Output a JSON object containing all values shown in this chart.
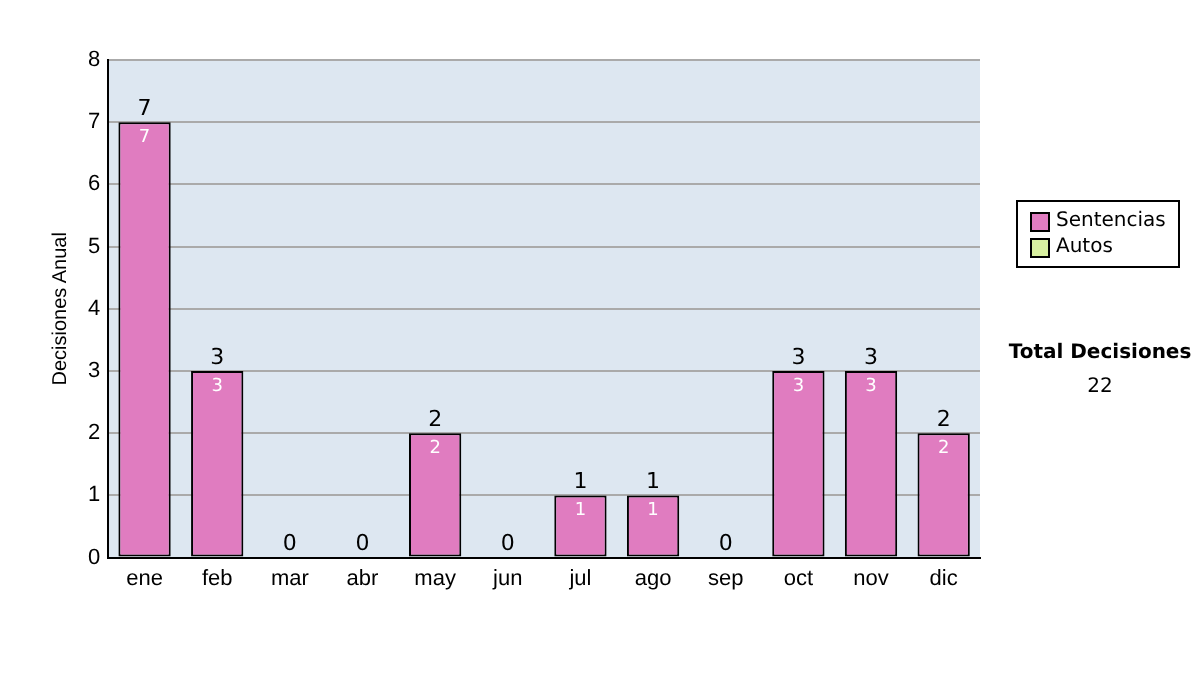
{
  "chart_data": {
    "type": "bar",
    "stacked": true,
    "ylabel": "Decisiones Anual",
    "categories": [
      "ene",
      "feb",
      "mar",
      "abr",
      "may",
      "jun",
      "jul",
      "ago",
      "sep",
      "oct",
      "nov",
      "dic"
    ],
    "series": [
      {
        "name": "Sentencias",
        "color": "#e07cc0",
        "values": [
          7,
          3,
          0,
          0,
          2,
          0,
          1,
          1,
          0,
          3,
          3,
          2
        ],
        "value_labels": [
          "7",
          "3",
          null,
          null,
          "2",
          null,
          "1",
          "1",
          null,
          "3",
          "3",
          "2"
        ]
      },
      {
        "name": "Autos",
        "color": "#d8f0a0",
        "values": [
          0,
          0,
          0,
          0,
          0,
          0,
          0,
          0,
          0,
          0,
          0,
          0
        ]
      }
    ],
    "totals": [
      "7",
      "3",
      "0",
      "0",
      "2",
      "0",
      "1",
      "1",
      "0",
      "3",
      "3",
      "2"
    ],
    "ylim": [
      0,
      8
    ],
    "yticks": [
      0,
      1,
      2,
      3,
      4,
      5,
      6,
      7,
      8
    ],
    "grid": "y",
    "legend": "right",
    "annotations": [
      "Total Decisiones",
      "22"
    ]
  }
}
